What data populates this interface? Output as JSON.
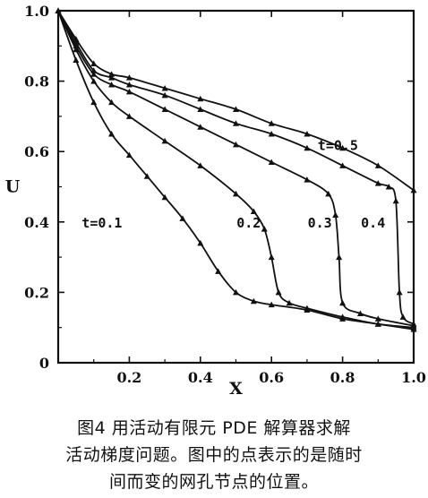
{
  "chart_data": {
    "type": "line",
    "xlabel": "X",
    "ylabel": "U",
    "xlim": [
      0,
      1.0
    ],
    "ylim": [
      0,
      1.0
    ],
    "x_ticks": [
      "0",
      "0.2",
      "0.4",
      "0.6",
      "0.8",
      "1.0"
    ],
    "y_ticks": [
      "0",
      "0.2",
      "0.4",
      "0.6",
      "0.8",
      "1.0"
    ],
    "grid": false,
    "series": [
      {
        "name": "t=0.1",
        "x": [
          0,
          0.05,
          0.1,
          0.15,
          0.2,
          0.25,
          0.3,
          0.35,
          0.4,
          0.45,
          0.5,
          0.55,
          0.6,
          0.7,
          0.8,
          0.9,
          1.0
        ],
        "y": [
          1.0,
          0.86,
          0.74,
          0.65,
          0.59,
          0.53,
          0.47,
          0.41,
          0.34,
          0.26,
          0.2,
          0.175,
          0.165,
          0.15,
          0.125,
          0.11,
          0.095
        ]
      },
      {
        "name": "0.2",
        "x": [
          0,
          0.05,
          0.1,
          0.15,
          0.2,
          0.3,
          0.4,
          0.5,
          0.55,
          0.58,
          0.6,
          0.62,
          0.65,
          0.7,
          0.8,
          0.9,
          1.0
        ],
        "y": [
          1.0,
          0.89,
          0.8,
          0.74,
          0.7,
          0.63,
          0.56,
          0.48,
          0.43,
          0.38,
          0.3,
          0.2,
          0.17,
          0.155,
          0.13,
          0.11,
          0.1
        ]
      },
      {
        "name": "0.3",
        "x": [
          0,
          0.05,
          0.1,
          0.15,
          0.2,
          0.3,
          0.4,
          0.5,
          0.6,
          0.7,
          0.76,
          0.78,
          0.79,
          0.8,
          0.85,
          0.9,
          1.0
        ],
        "y": [
          1.0,
          0.9,
          0.82,
          0.79,
          0.77,
          0.72,
          0.67,
          0.62,
          0.57,
          0.52,
          0.48,
          0.42,
          0.3,
          0.17,
          0.14,
          0.125,
          0.105
        ]
      },
      {
        "name": "0.4",
        "x": [
          0,
          0.05,
          0.1,
          0.15,
          0.2,
          0.3,
          0.4,
          0.5,
          0.6,
          0.7,
          0.8,
          0.9,
          0.93,
          0.95,
          0.96,
          0.97,
          1.0
        ],
        "y": [
          1.0,
          0.91,
          0.83,
          0.81,
          0.79,
          0.76,
          0.72,
          0.68,
          0.65,
          0.61,
          0.56,
          0.51,
          0.5,
          0.46,
          0.2,
          0.13,
          0.11
        ]
      },
      {
        "name": "t=0.5",
        "x": [
          0,
          0.05,
          0.1,
          0.15,
          0.2,
          0.3,
          0.4,
          0.5,
          0.6,
          0.7,
          0.8,
          0.9,
          1.0
        ],
        "y": [
          1.0,
          0.92,
          0.85,
          0.82,
          0.81,
          0.78,
          0.75,
          0.72,
          0.68,
          0.65,
          0.61,
          0.56,
          0.49
        ]
      }
    ]
  },
  "caption": {
    "line1": "图4  用活动有限元 PDE 解算器求解",
    "line2": "活动梯度问题。图中的点表示的是随时",
    "line3": "间而变的网孔节点的位置。"
  }
}
